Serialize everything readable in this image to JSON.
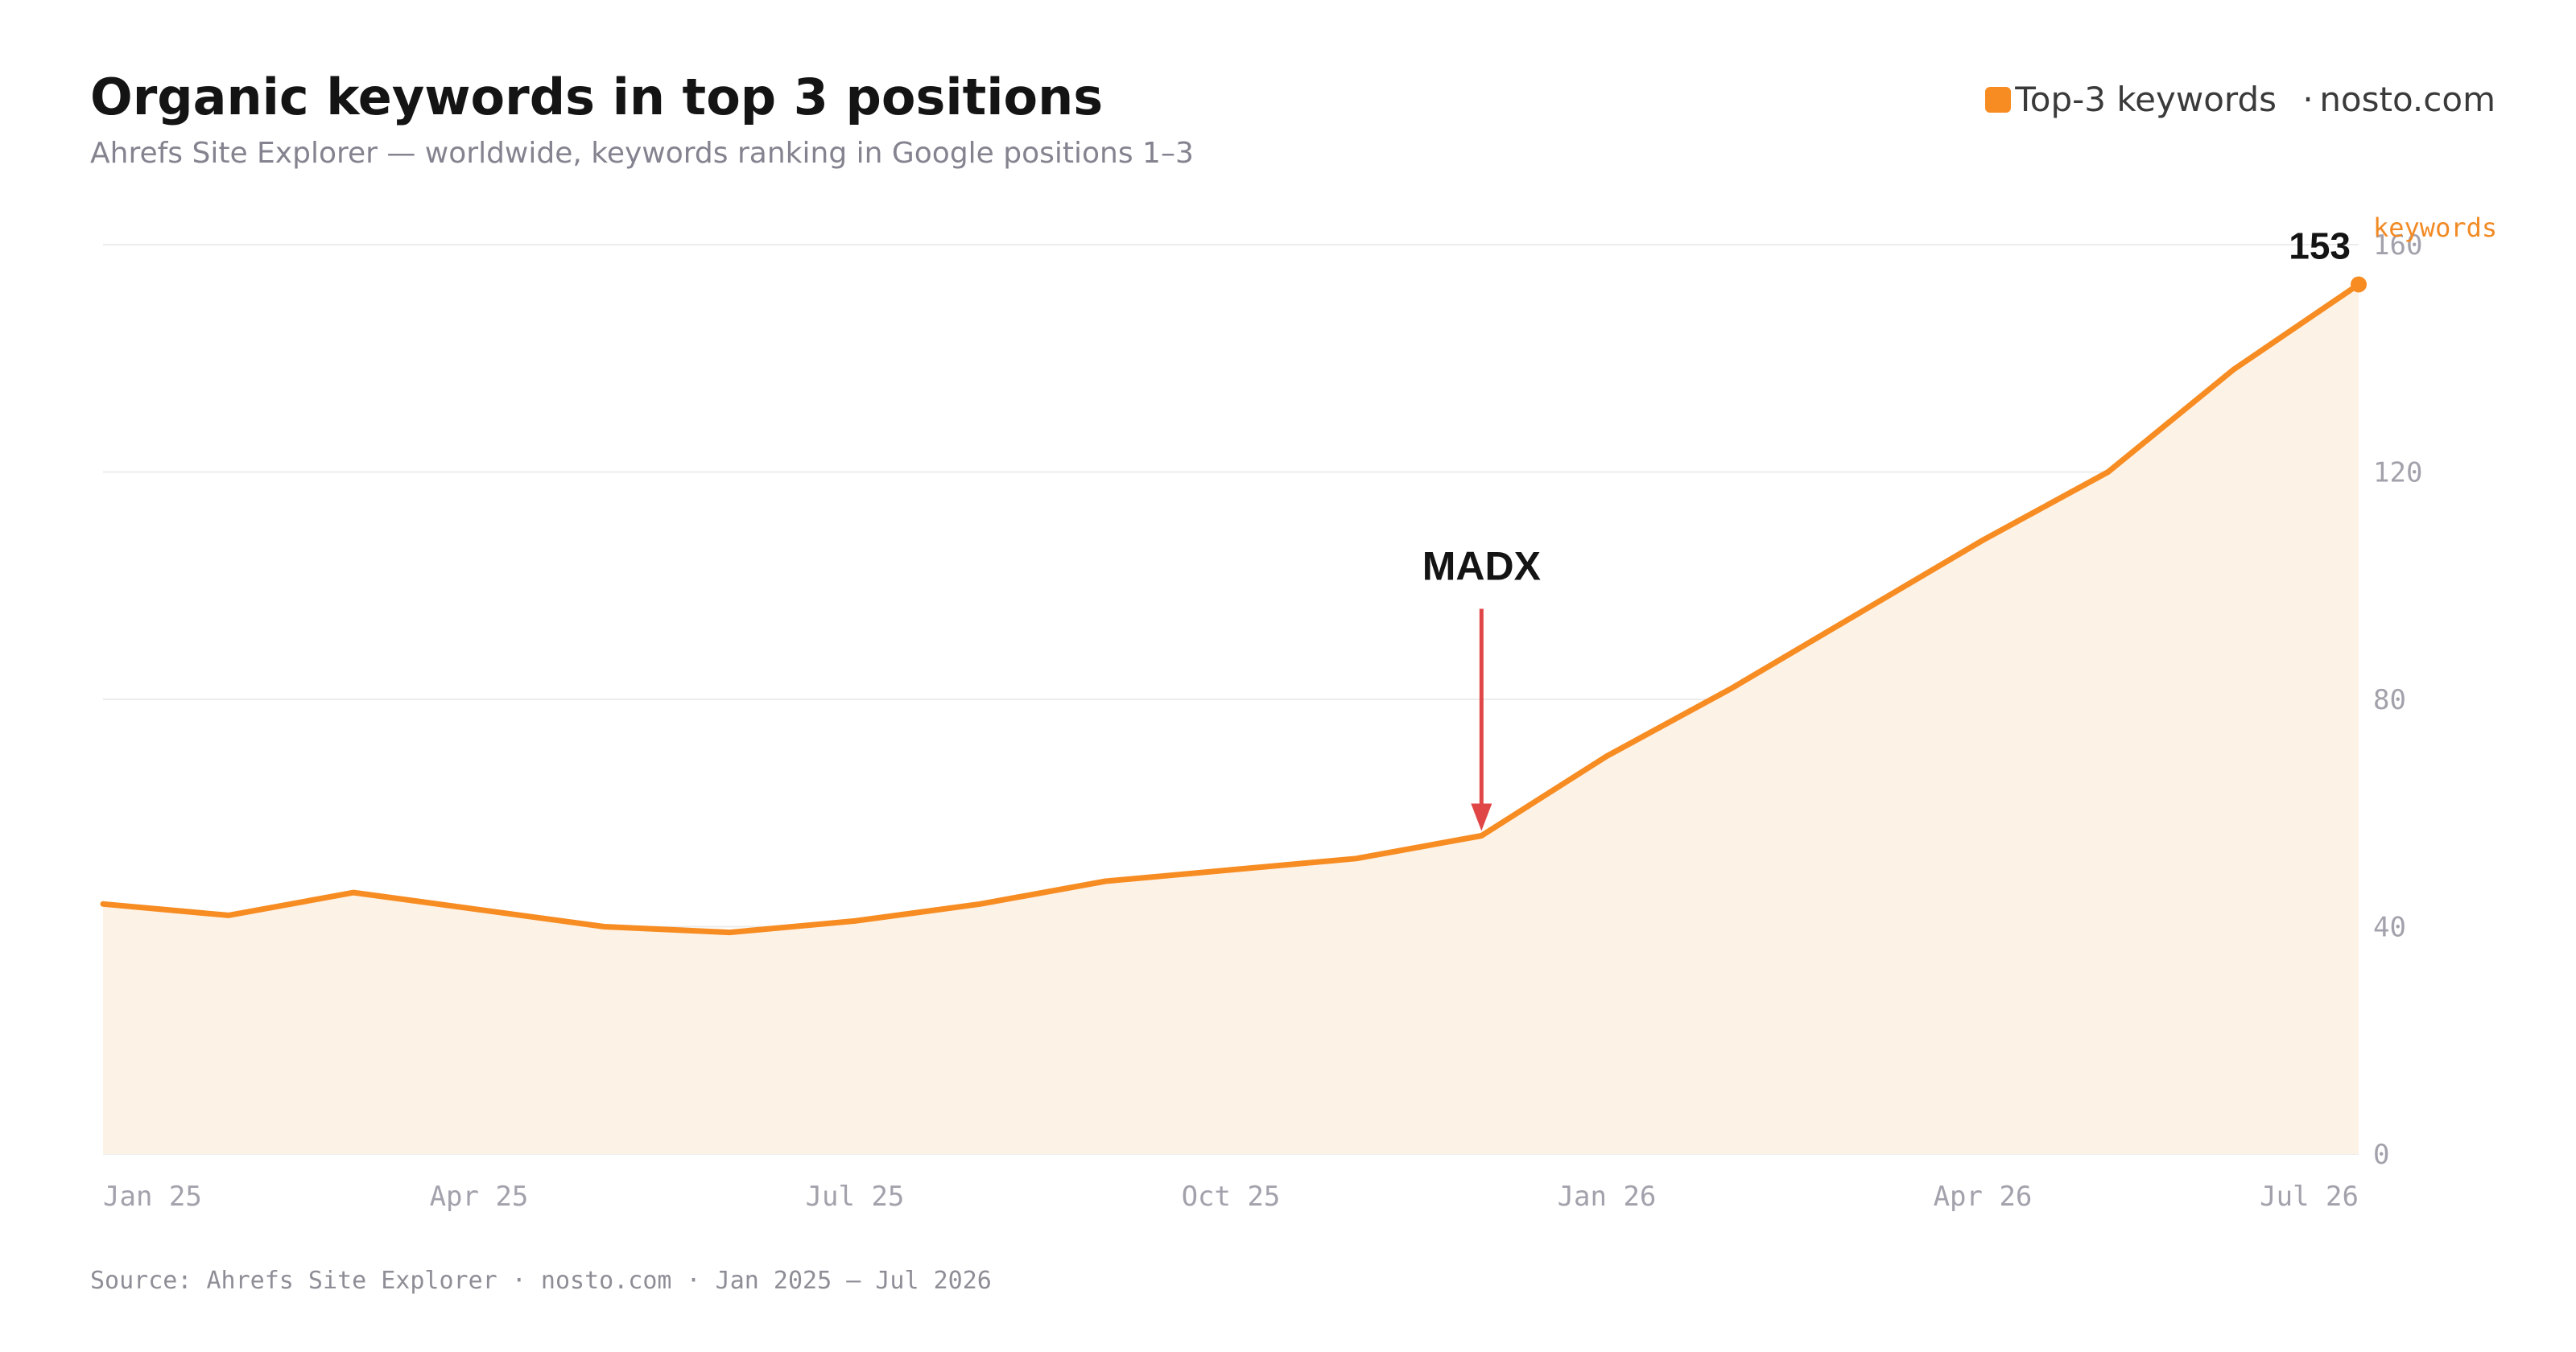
{
  "header": {
    "title": "Organic keywords in top 3 positions",
    "subtitle": "Ahrefs Site Explorer — worldwide, keywords ranking in Google positions 1–3"
  },
  "legend": {
    "series_label": "Top-3 keywords",
    "separator": "·",
    "domain": "nosto.com",
    "swatch_color": "#f78c22"
  },
  "footer": {
    "source": "Source: Ahrefs Site Explorer · nosto.com · Jan 2025 – Jul 2026"
  },
  "chart_data": {
    "type": "area",
    "title": "Organic keywords in top 3 positions",
    "y_unit_label": "keywords",
    "ylim": [
      0,
      160
    ],
    "y_ticks": [
      0,
      40,
      80,
      120,
      160
    ],
    "x_tick_labels": [
      "Jan 25",
      "Apr 25",
      "Jul 25",
      "Oct 25",
      "Jan 26",
      "Apr 26",
      "Jul 26"
    ],
    "grid": true,
    "legend_position": "top-right",
    "line_color": "#f78c22",
    "fill_color": "#fdf2e6",
    "series": [
      {
        "name": "Top-3 keywords",
        "x": [
          "Jan 2025",
          "Feb 2025",
          "Mar 2025",
          "Apr 2025",
          "May 2025",
          "Jun 2025",
          "Jul 2025",
          "Aug 2025",
          "Sep 2025",
          "Oct 2025",
          "Nov 2025",
          "Dec 2025",
          "Jan 2026",
          "Feb 2026",
          "Mar 2026",
          "Apr 2026",
          "May 2026",
          "Jun 2026",
          "Jul 2026"
        ],
        "values": [
          44,
          42,
          46,
          43,
          40,
          39,
          41,
          44,
          48,
          50,
          52,
          56,
          70,
          82,
          95,
          108,
          120,
          138,
          153
        ]
      }
    ],
    "annotations": [
      {
        "label": "MADX",
        "x": "Dec 2025",
        "value": 56,
        "arrow_color": "#e04646"
      },
      {
        "label": "153",
        "x": "Jul 2026",
        "value": 153
      }
    ]
  }
}
